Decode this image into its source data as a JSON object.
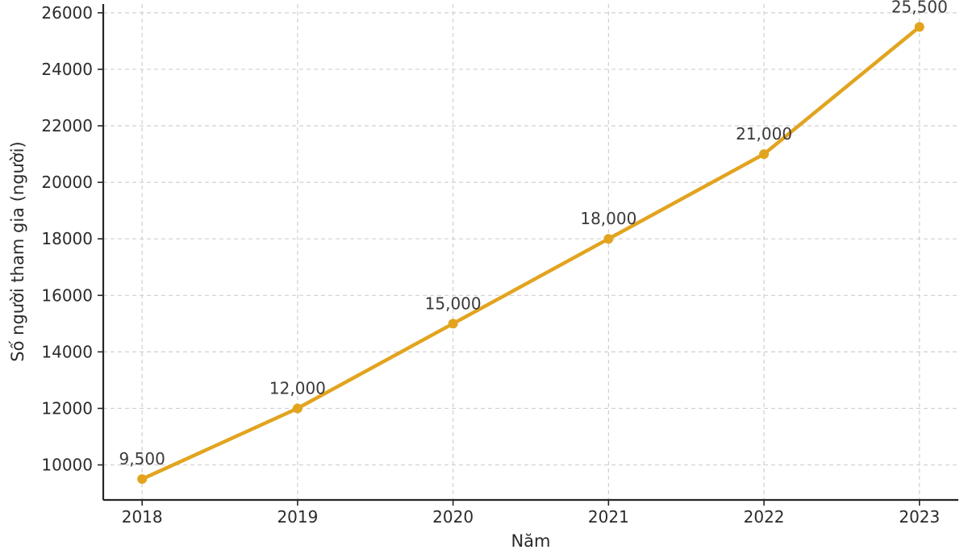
{
  "chart_data": {
    "type": "line",
    "x": [
      2018,
      2019,
      2020,
      2021,
      2022,
      2023
    ],
    "values": [
      9500,
      12000,
      15000,
      18000,
      21000,
      25500
    ],
    "point_labels": [
      "9,500",
      "12,000",
      "15,000",
      "18,000",
      "21,000",
      "25,500"
    ],
    "title": "",
    "xlabel": "Năm",
    "ylabel": "Số người tham gia (người)",
    "xtick_labels": [
      "2018",
      "2019",
      "2020",
      "2021",
      "2022",
      "2023"
    ],
    "xticks": [
      2018,
      2019,
      2020,
      2021,
      2022,
      2023
    ],
    "ytick_labels": [
      "10000",
      "12000",
      "14000",
      "16000",
      "18000",
      "20000",
      "22000",
      "24000",
      "26000"
    ],
    "yticks": [
      10000,
      12000,
      14000,
      16000,
      18000,
      20000,
      22000,
      24000,
      26000
    ],
    "xlim": [
      2017.75,
      2023.25
    ],
    "ylim": [
      8760,
      26310
    ],
    "grid": true,
    "grid_style": "dashed",
    "legend": null,
    "line_color": "#E2A41F",
    "marker": "circle",
    "marker_radius": 6,
    "line_width": 4.5,
    "text_color": "#2b2b2b",
    "spine_color": "#262626",
    "grid_color": "#d0d0d0",
    "background": "#ffffff"
  }
}
